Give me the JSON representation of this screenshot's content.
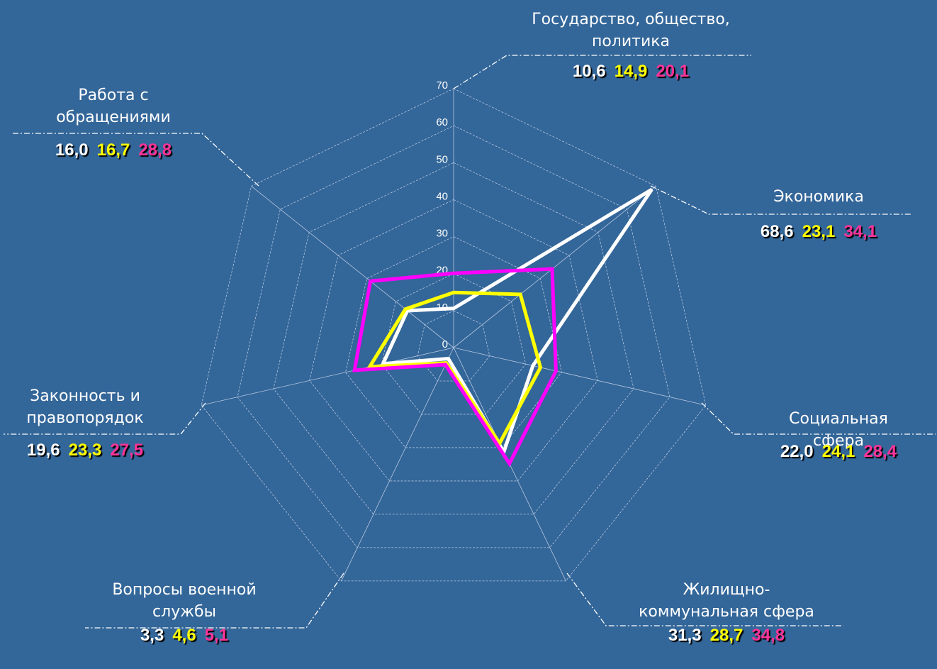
{
  "chart_data": {
    "type": "radar",
    "categories": [
      "Государство, общество,\nполитика",
      "Экономика",
      "Социальная сфера",
      "Жилищно-\nкоммунальная сфера",
      "Вопросы военной\nслужбы",
      "Законность и\nправопорядок",
      "Работа с\nобращениями"
    ],
    "series": [
      {
        "color": "#ffffff",
        "text_color": "#ffffff",
        "values": [
          10.6,
          68.6,
          22.0,
          31.3,
          3.3,
          19.6,
          16.0
        ],
        "value_labels": [
          "10,6",
          "68,6",
          "22,0",
          "31,3",
          "3,3",
          "19,6",
          "16,0"
        ]
      },
      {
        "color": "#ffff00",
        "text_color": "#ffff00",
        "values": [
          14.9,
          23.1,
          24.1,
          28.7,
          4.6,
          23.3,
          16.7
        ],
        "value_labels": [
          "14,9",
          "23,1",
          "24,1",
          "28,7",
          "4,6",
          "23,3",
          "16,7"
        ]
      },
      {
        "color": "#ff00ff",
        "text_color": "#ff3399",
        "values": [
          20.1,
          34.1,
          28.4,
          34.8,
          5.1,
          27.5,
          28.8
        ],
        "value_labels": [
          "20,1",
          "34,1",
          "28,4",
          "34,8",
          "5,1",
          "27,5",
          "28,8"
        ]
      }
    ],
    "ylim": [
      0,
      70
    ],
    "yticks": [
      0,
      10,
      20,
      30,
      40,
      50,
      60,
      70
    ],
    "grid": true
  }
}
